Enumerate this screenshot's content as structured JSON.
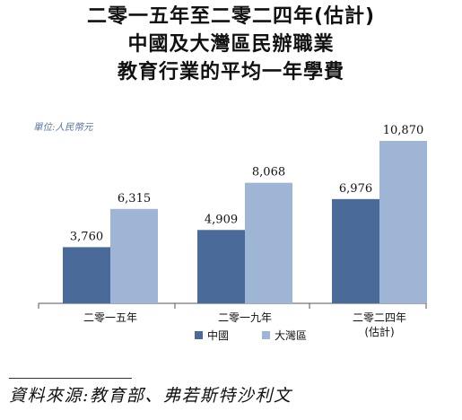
{
  "title_lines": [
    "二零一五年至二零二四年(估計)",
    "中國及大灣區民辦職業",
    "教育行業的平均一年學費"
  ],
  "unit_label": "單位:人民幣元",
  "source_text": "資料來源:教育部、弗若斯特沙利文",
  "colors": {
    "china": "#4a6a9a",
    "gba": "#9fb5d6",
    "axis": "#555555",
    "unit_text": "#5a78a6"
  },
  "chart_data": {
    "type": "bar",
    "title": "二零一五年至二零二四年(估計)中國及大灣區民辦職業教育行業的平均一年學費",
    "ylabel": "單位:人民幣元",
    "ylim": [
      0,
      12000
    ],
    "grid": false,
    "legend_position": "bottom",
    "categories": [
      [
        "二零一五年"
      ],
      [
        "二零一九年"
      ],
      [
        "二零二四年",
        "(估計)"
      ]
    ],
    "series": [
      {
        "name": "中國",
        "color": "#4a6a9a",
        "values": [
          3760,
          4909,
          6976
        ],
        "labels": [
          "3,760",
          "4,909",
          "6,976"
        ]
      },
      {
        "name": "大灣區",
        "color": "#9fb5d6",
        "values": [
          6315,
          8068,
          10870
        ],
        "labels": [
          "6,315",
          "8,068",
          "10,870"
        ]
      }
    ]
  }
}
